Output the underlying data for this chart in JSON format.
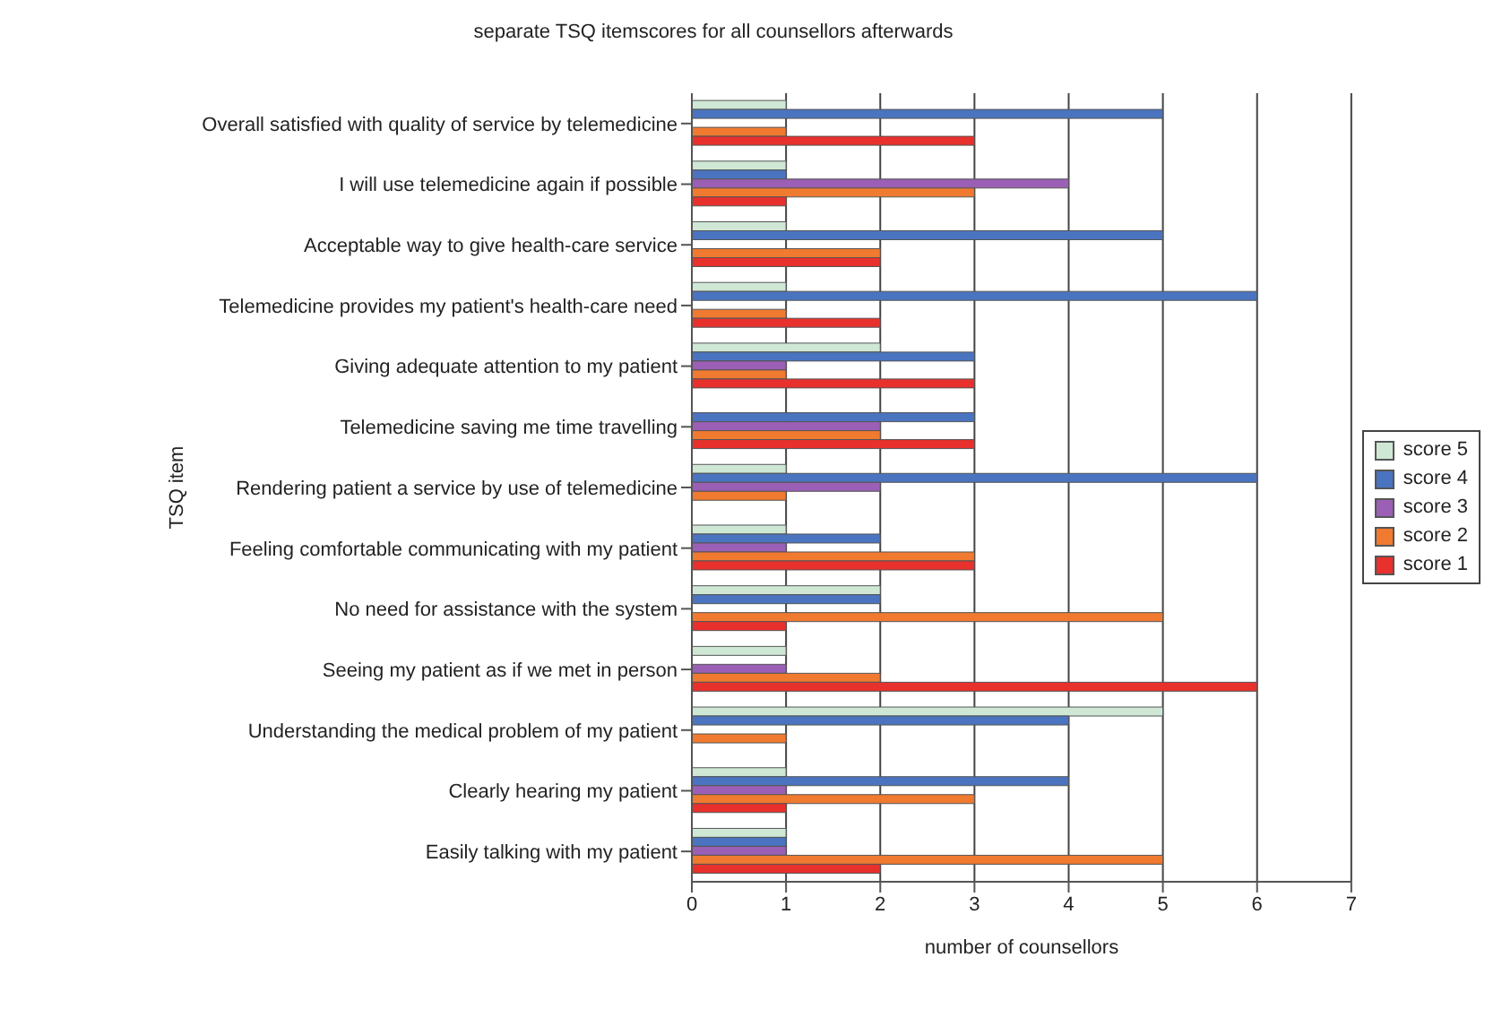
{
  "chart_data": {
    "type": "bar",
    "orientation": "horizontal",
    "title": "separate TSQ itemscores for all counsellors afterwards",
    "xlabel": "number of counsellors",
    "ylabel": "TSQ item",
    "categories": [
      "Overall satisfied with quality of service by telemedicine",
      "I will use telemedicine again if possible",
      "Acceptable way to give health-care service",
      "Telemedicine provides my patient's health-care need",
      "Giving adequate attention to my patient",
      "Telemedicine saving me time travelling",
      "Rendering patient a service by use of telemedicine",
      "Feeling comfortable communicating with my patient",
      "No need for assistance with the system",
      "Seeing my patient as if we met in person",
      "Understanding the medical problem of my patient",
      "Clearly hearing my patient",
      "Easily talking with my patient"
    ],
    "series": [
      {
        "name": "score 5",
        "color": "#cfe8d6",
        "values": [
          1,
          1,
          1,
          1,
          2,
          0,
          1,
          1,
          2,
          1,
          5,
          1,
          1
        ]
      },
      {
        "name": "score 4",
        "color": "#4a74c0",
        "values": [
          5,
          1,
          5,
          6,
          3,
          3,
          6,
          2,
          2,
          0,
          4,
          4,
          1
        ]
      },
      {
        "name": "score 3",
        "color": "#9b5fb5",
        "values": [
          0,
          4,
          0,
          0,
          1,
          2,
          2,
          1,
          0,
          1,
          0,
          1,
          1
        ]
      },
      {
        "name": "score 2",
        "color": "#f07a30",
        "values": [
          1,
          3,
          2,
          1,
          1,
          2,
          1,
          3,
          5,
          2,
          1,
          3,
          5
        ]
      },
      {
        "name": "score 1",
        "color": "#e8302c",
        "values": [
          3,
          1,
          2,
          2,
          3,
          3,
          0,
          3,
          1,
          6,
          0,
          1,
          2
        ]
      }
    ],
    "xlim": [
      0,
      7
    ],
    "xticks": [
      0,
      1,
      2,
      3,
      4,
      5,
      6,
      7
    ],
    "grid": "x",
    "legend": "right"
  }
}
